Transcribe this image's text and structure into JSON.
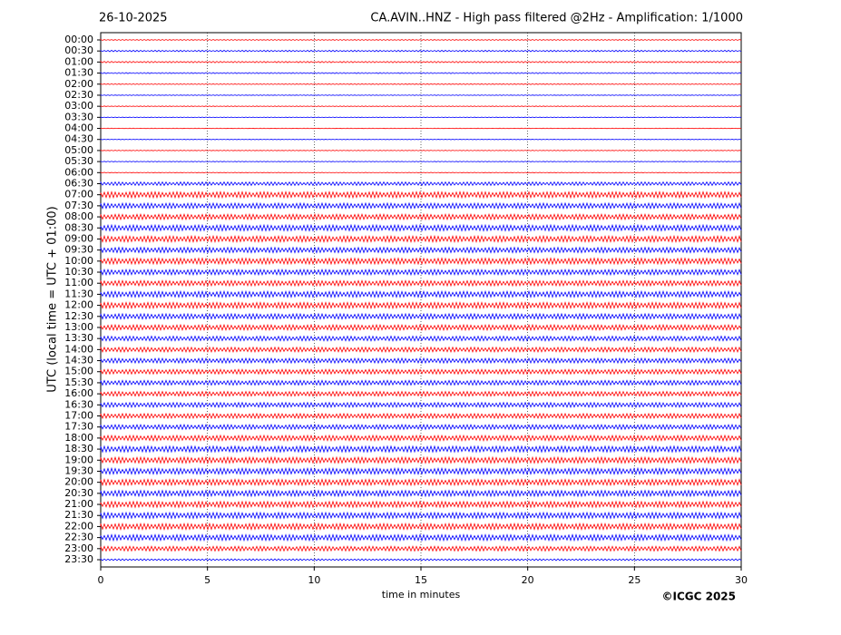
{
  "chart_data": {
    "type": "helicorder",
    "date": "26-10-2025",
    "title": "CA.AVIN..HNZ - High pass filtered @2Hz - Amplification: 1/1000",
    "ylabel": "UTC (local time = UTC + 01:00)",
    "xlabel": "time in minutes",
    "credit": "©ICGC 2025",
    "xlim": [
      0,
      30
    ],
    "xticks": [
      0,
      5,
      10,
      15,
      20,
      25,
      30
    ],
    "grid": true,
    "colors": [
      "#ff0000",
      "#0000ff"
    ],
    "categories": [
      "00:00",
      "00:30",
      "01:00",
      "01:30",
      "02:00",
      "02:30",
      "03:00",
      "03:30",
      "04:00",
      "04:30",
      "05:00",
      "05:30",
      "06:00",
      "06:30",
      "07:00",
      "07:30",
      "08:00",
      "08:30",
      "09:00",
      "09:30",
      "10:00",
      "10:30",
      "11:00",
      "11:30",
      "12:00",
      "12:30",
      "13:00",
      "13:30",
      "14:00",
      "14:30",
      "15:00",
      "15:30",
      "16:00",
      "16:30",
      "17:00",
      "17:30",
      "18:00",
      "18:30",
      "19:00",
      "19:30",
      "20:00",
      "20:30",
      "21:00",
      "21:30",
      "22:00",
      "22:30",
      "23:00",
      "23:30"
    ],
    "values": [
      0.3,
      0.5,
      0.5,
      0.4,
      0.3,
      0.2,
      0.2,
      0.2,
      0.2,
      0.2,
      0.2,
      0.2,
      0.2,
      1.2,
      2,
      1.8,
      1.8,
      2,
      2,
      1.8,
      2,
      1.8,
      1.8,
      2,
      2,
      1.8,
      1.8,
      1.6,
      1.6,
      1.6,
      1.6,
      1.6,
      1.6,
      1.6,
      1.6,
      1.6,
      1.8,
      2,
      2,
      2,
      2,
      2,
      2,
      2,
      2,
      2,
      1.6,
      0.6
    ]
  }
}
